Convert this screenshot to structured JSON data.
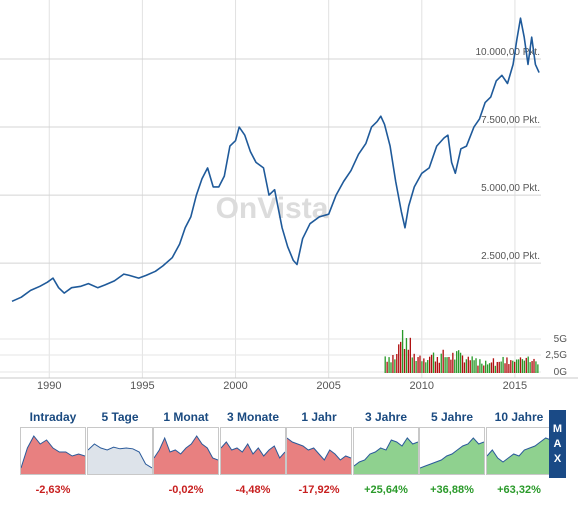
{
  "chart_data": {
    "type": "line",
    "xlim": [
      1988,
      2016.4
    ],
    "ylim": [
      -800,
      11800
    ],
    "y_ticks": [
      2500,
      5000,
      7500,
      10000
    ],
    "y_tick_labels": [
      "2.500,00 Pkt.",
      "5.000,00 Pkt.",
      "7.500,00 Pkt.",
      "10.000,00 Pkt."
    ],
    "x_ticks": [
      1990,
      1995,
      2000,
      2005,
      2010,
      2015
    ],
    "x_tick_labels": [
      "1990",
      "1995",
      "2000",
      "2005",
      "2010",
      "2015"
    ],
    "grid": true,
    "line_color": "#1f5a9a",
    "series": [
      {
        "x": [
          1988.0,
          1988.5,
          1989.0,
          1989.5,
          1989.9,
          1990.2,
          1990.5,
          1990.8,
          1991.2,
          1991.7,
          1992.1,
          1992.6,
          1993.0,
          1993.5,
          1994.0,
          1994.3,
          1994.8,
          1995.2,
          1995.7,
          1996.1,
          1996.6,
          1997.0,
          1997.3,
          1997.6,
          1997.9,
          1998.2,
          1998.5,
          1998.8,
          1999.1,
          1999.4,
          1999.7,
          2000.0,
          2000.2,
          2000.5,
          2000.8,
          2001.1,
          2001.5,
          2001.8,
          2002.1,
          2002.5,
          2002.8,
          2003.1,
          2003.3,
          2003.6,
          2004.0,
          2004.5,
          2005.0,
          2005.4,
          2005.8,
          2006.2,
          2006.6,
          2007.0,
          2007.3,
          2007.6,
          2007.8,
          2008.0,
          2008.3,
          2008.6,
          2008.9,
          2009.1,
          2009.3,
          2009.6,
          2010.0,
          2010.4,
          2010.8,
          2011.2,
          2011.4,
          2011.6,
          2011.8,
          2012.1,
          2012.4,
          2012.8,
          2013.1,
          2013.4,
          2013.7,
          2014.0,
          2014.3,
          2014.6,
          2014.9,
          2015.1,
          2015.3,
          2015.5,
          2015.7,
          2015.9,
          2016.1,
          2016.3
        ],
        "y": [
          1100,
          1250,
          1500,
          1650,
          1800,
          1950,
          1600,
          1400,
          1600,
          1650,
          1750,
          1600,
          1700,
          1850,
          2100,
          2050,
          1950,
          2050,
          2200,
          2400,
          2700,
          3200,
          3800,
          4200,
          5000,
          5600,
          6000,
          5300,
          5300,
          5700,
          6800,
          7000,
          7500,
          7200,
          6600,
          6200,
          6000,
          5000,
          5200,
          3800,
          3100,
          2600,
          2450,
          3400,
          3950,
          4200,
          4300,
          5000,
          5500,
          5900,
          6500,
          6900,
          7500,
          7700,
          7900,
          7600,
          6800,
          5500,
          4400,
          3800,
          4600,
          5300,
          5800,
          6000,
          6800,
          7100,
          7200,
          6200,
          5800,
          6700,
          6800,
          7500,
          7800,
          8400,
          8600,
          9200,
          9400,
          9100,
          9800,
          10700,
          11500,
          10800,
          9800,
          10800,
          9800,
          9500
        ]
      }
    ],
    "volume": {
      "y_ticks": [
        "5G",
        "2,5G",
        "0G"
      ],
      "x_start": 2008.0,
      "x_end": 2016.3,
      "bar_count": 80,
      "max": 9,
      "up_color": "#2a9a2a",
      "down_color": "#b01010"
    }
  },
  "watermark": {
    "brand": "OnVista"
  },
  "tabs": [
    {
      "label": "Intraday",
      "change": "-2,63%",
      "trend": "neg",
      "active": true,
      "spark": [
        0.1,
        0.6,
        0.9,
        0.7,
        0.8,
        0.6,
        0.5,
        0.5,
        0.4,
        0.45,
        0.4
      ]
    },
    {
      "label": "5 Tage",
      "change": "",
      "trend": "none",
      "active": false,
      "spark": [
        0.55,
        0.7,
        0.6,
        0.55,
        0.62,
        0.58,
        0.6,
        0.58,
        0.5,
        0.2,
        0.1
      ]
    },
    {
      "label": "1 Monat",
      "change": "-0,02%",
      "trend": "neg",
      "active": false,
      "spark": [
        0.35,
        0.55,
        0.85,
        0.5,
        0.55,
        0.45,
        0.6,
        0.7,
        0.9,
        0.7,
        0.6,
        0.35,
        0.3
      ]
    },
    {
      "label": "3 Monate",
      "change": "-4,48%",
      "trend": "neg",
      "active": false,
      "spark": [
        0.6,
        0.75,
        0.55,
        0.6,
        0.5,
        0.7,
        0.45,
        0.6,
        0.4,
        0.55,
        0.65,
        0.35,
        0.5
      ]
    },
    {
      "label": "1 Jahr",
      "change": "-17,92%",
      "trend": "neg",
      "active": false,
      "spark": [
        0.85,
        0.75,
        0.7,
        0.65,
        0.55,
        0.6,
        0.45,
        0.3,
        0.55,
        0.45,
        0.3,
        0.4,
        0.35
      ]
    },
    {
      "label": "3 Jahre",
      "change": "+25,64%",
      "trend": "pos",
      "active": false,
      "spark": [
        0.15,
        0.25,
        0.3,
        0.45,
        0.5,
        0.6,
        0.55,
        0.8,
        0.75,
        0.65,
        0.85,
        0.7,
        0.75
      ]
    },
    {
      "label": "5 Jahre",
      "change": "+36,88%",
      "trend": "pos",
      "active": false,
      "spark": [
        0.1,
        0.15,
        0.2,
        0.25,
        0.3,
        0.4,
        0.45,
        0.55,
        0.65,
        0.7,
        0.85,
        0.7,
        0.75
      ]
    },
    {
      "label": "10 Jahre",
      "change": "+63,32%",
      "trend": "pos",
      "active": false,
      "spark": [
        0.4,
        0.55,
        0.35,
        0.25,
        0.35,
        0.45,
        0.4,
        0.55,
        0.6,
        0.65,
        0.75,
        0.85,
        0.8
      ]
    }
  ],
  "max_button": {
    "letters": [
      "M",
      "A",
      "X"
    ]
  },
  "colors": {
    "neg_fill": "#e88080",
    "pos_fill": "#8fd18f",
    "neutral_fill": "#dde3ea"
  }
}
